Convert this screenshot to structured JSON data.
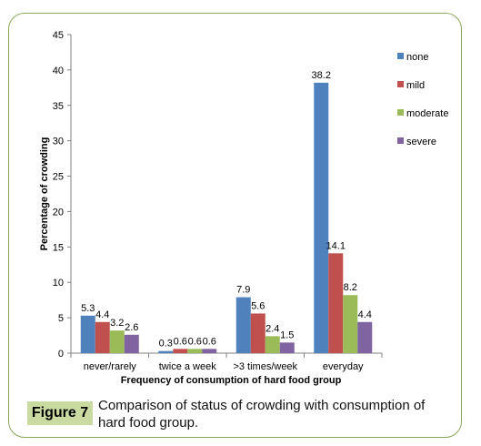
{
  "figure": {
    "label": "Figure 7",
    "caption": "Comparison of status of crowding with consumption of hard food group."
  },
  "chart_data": {
    "type": "bar",
    "title": "",
    "xlabel": "Frequency of consumption of hard food group",
    "ylabel": "Percentage of crowding",
    "ylim": [
      0,
      45
    ],
    "yticks": [
      0,
      5,
      10,
      15,
      20,
      25,
      30,
      35,
      40,
      45
    ],
    "categories": [
      "never/rarely",
      "twice a week",
      ">3 times/week",
      "everyday"
    ],
    "series": [
      {
        "name": "none",
        "color": "#4f81bd",
        "values": [
          5.3,
          0.3,
          7.9,
          38.2
        ]
      },
      {
        "name": "mild",
        "color": "#c0504d",
        "values": [
          4.4,
          0.6,
          5.6,
          14.1
        ]
      },
      {
        "name": "moderate",
        "color": "#9bbb59",
        "values": [
          3.2,
          0.6,
          2.4,
          8.2
        ]
      },
      {
        "name": "severe",
        "color": "#8064a2",
        "values": [
          2.6,
          0.6,
          1.5,
          4.4
        ]
      }
    ],
    "legend_position": "right",
    "grid": false,
    "data_labels": true
  }
}
